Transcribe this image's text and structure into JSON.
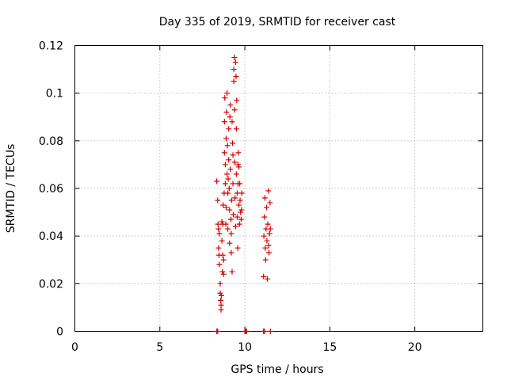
{
  "chart_data": {
    "type": "scatter",
    "title": "Day 335 of 2019, SRMTID for receiver cast",
    "xlabel": "GPS time / hours",
    "ylabel": "SRMTID / TECUs",
    "xlim": [
      0,
      24
    ],
    "ylim": [
      0,
      0.12
    ],
    "xticks": [
      0,
      5,
      10,
      15,
      20
    ],
    "xtick_labels": [
      "0",
      "5",
      "10",
      "15",
      "20"
    ],
    "yticks": [
      0,
      0.02,
      0.04,
      0.06,
      0.08,
      0.1,
      0.12
    ],
    "ytick_labels": [
      "0",
      "0.02",
      "0.04",
      "0.06",
      "0.08",
      "0.1",
      "0.12"
    ],
    "grid": true,
    "marker": "+",
    "color": "#d40000",
    "series": [
      {
        "points": [
          [
            8.35,
            0.063
          ],
          [
            8.4,
            0.055
          ],
          [
            8.42,
            0.045
          ],
          [
            8.45,
            0.043
          ],
          [
            8.45,
            0.035
          ],
          [
            8.48,
            0.032
          ],
          [
            8.5,
            0.041
          ],
          [
            8.5,
            0.028
          ],
          [
            8.55,
            0.02
          ],
          [
            8.55,
            0.016
          ],
          [
            8.58,
            0.013
          ],
          [
            8.6,
            0.011
          ],
          [
            8.6,
            0.009
          ],
          [
            8.62,
            0.015
          ],
          [
            8.65,
            0.046
          ],
          [
            8.65,
            0.038
          ],
          [
            8.68,
            0.025
          ],
          [
            8.7,
            0.032
          ],
          [
            8.7,
            0.045
          ],
          [
            8.72,
            0.053
          ],
          [
            8.75,
            0.03
          ],
          [
            8.75,
            0.024
          ],
          [
            8.78,
            0.058
          ],
          [
            8.8,
            0.075
          ],
          [
            8.8,
            0.088
          ],
          [
            8.82,
            0.098
          ],
          [
            8.85,
            0.07
          ],
          [
            8.85,
            0.062
          ],
          [
            8.88,
            0.045
          ],
          [
            8.9,
            0.052
          ],
          [
            8.9,
            0.081
          ],
          [
            8.92,
            0.092
          ],
          [
            8.95,
            0.1
          ],
          [
            8.95,
            0.066
          ],
          [
            8.98,
            0.078
          ],
          [
            9.0,
            0.058
          ],
          [
            9.0,
            0.043
          ],
          [
            9.02,
            0.064
          ],
          [
            9.05,
            0.072
          ],
          [
            9.05,
            0.085
          ],
          [
            9.08,
            0.06
          ],
          [
            9.1,
            0.051
          ],
          [
            9.1,
            0.037
          ],
          [
            9.12,
            0.09
          ],
          [
            9.15,
            0.095
          ],
          [
            9.15,
            0.068
          ],
          [
            9.18,
            0.047
          ],
          [
            9.2,
            0.041
          ],
          [
            9.2,
            0.033
          ],
          [
            9.22,
            0.055
          ],
          [
            9.25,
            0.025
          ],
          [
            9.25,
            0.088
          ],
          [
            9.28,
            0.079
          ],
          [
            9.3,
            0.074
          ],
          [
            9.3,
            0.062
          ],
          [
            9.32,
            0.049
          ],
          [
            9.35,
            0.105
          ],
          [
            9.35,
            0.11
          ],
          [
            9.38,
            0.115
          ],
          [
            9.4,
            0.093
          ],
          [
            9.4,
            0.071
          ],
          [
            9.42,
            0.056
          ],
          [
            9.45,
            0.044
          ],
          [
            9.45,
            0.113
          ],
          [
            9.48,
            0.107
          ],
          [
            9.5,
            0.085
          ],
          [
            9.5,
            0.066
          ],
          [
            9.52,
            0.097
          ],
          [
            9.55,
            0.058
          ],
          [
            9.55,
            0.048
          ],
          [
            9.58,
            0.035
          ],
          [
            9.6,
            0.062
          ],
          [
            9.6,
            0.07
          ],
          [
            9.62,
            0.075
          ],
          [
            9.65,
            0.069
          ],
          [
            9.65,
            0.053
          ],
          [
            9.68,
            0.045
          ],
          [
            9.7,
            0.062
          ],
          [
            9.72,
            0.055
          ],
          [
            9.75,
            0.05
          ],
          [
            9.78,
            0.047
          ],
          [
            9.8,
            0.051
          ],
          [
            9.82,
            0.058
          ],
          [
            11.1,
            0.023
          ],
          [
            11.12,
            0.04
          ],
          [
            11.15,
            0.048
          ],
          [
            11.18,
            0.056
          ],
          [
            11.2,
            0.035
          ],
          [
            11.22,
            0.03
          ],
          [
            11.25,
            0.043
          ],
          [
            11.28,
            0.052
          ],
          [
            11.3,
            0.038
          ],
          [
            11.32,
            0.022
          ],
          [
            11.35,
            0.045
          ],
          [
            11.38,
            0.059
          ],
          [
            11.4,
            0.036
          ],
          [
            11.42,
            0.033
          ],
          [
            11.45,
            0.041
          ],
          [
            11.48,
            0.054
          ],
          [
            11.5,
            0.043
          ]
        ]
      }
    ],
    "zero_points_x": [
      8.35,
      8.4,
      10.0,
      10.05,
      10.1,
      11.1,
      11.15,
      11.5
    ]
  }
}
